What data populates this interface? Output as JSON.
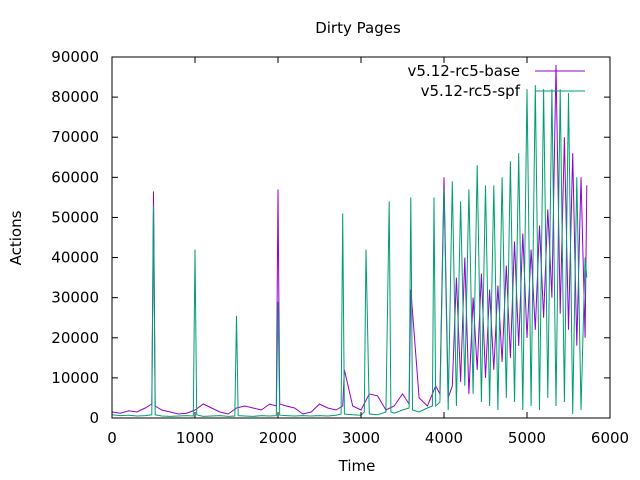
{
  "chart_data": {
    "type": "line",
    "title": "Dirty Pages",
    "xlabel": "Time",
    "ylabel": "Actions",
    "xlim": [
      0,
      6000
    ],
    "ylim": [
      0,
      90000
    ],
    "x_ticks": [
      "0",
      "1000",
      "2000",
      "3000",
      "4000",
      "5000",
      "6000"
    ],
    "y_ticks": [
      "0",
      "10000",
      "20000",
      "30000",
      "40000",
      "50000",
      "60000",
      "70000",
      "80000",
      "90000"
    ],
    "grid": false,
    "legend_position": "top-right",
    "series": [
      {
        "name": "v5.12-rc5-base",
        "color": "#9400d3",
        "x": [
          0,
          100,
          200,
          300,
          400,
          480,
          500,
          520,
          600,
          700,
          800,
          900,
          1000,
          1100,
          1200,
          1300,
          1400,
          1500,
          1600,
          1700,
          1800,
          1900,
          1980,
          2000,
          2020,
          2100,
          2200,
          2300,
          2400,
          2500,
          2600,
          2700,
          2780,
          2800,
          2900,
          3000,
          3100,
          3200,
          3300,
          3400,
          3500,
          3580,
          3600,
          3700,
          3800,
          3900,
          3950,
          4000,
          4050,
          4100,
          4150,
          4200,
          4250,
          4300,
          4350,
          4400,
          4450,
          4500,
          4550,
          4600,
          4650,
          4700,
          4750,
          4800,
          4850,
          4900,
          4950,
          5000,
          5050,
          5100,
          5150,
          5200,
          5250,
          5300,
          5350,
          5400,
          5450,
          5500,
          5550,
          5600,
          5650,
          5700,
          5720
        ],
        "y": [
          1500,
          1200,
          1800,
          1500,
          2500,
          3500,
          56500,
          3000,
          2000,
          1500,
          1000,
          1200,
          2000,
          3500,
          2500,
          1500,
          1000,
          2500,
          3000,
          2500,
          2000,
          3500,
          3000,
          57000,
          3500,
          3000,
          2500,
          1000,
          1500,
          3500,
          2500,
          2000,
          3000,
          12000,
          3000,
          2000,
          6000,
          5500,
          2000,
          3000,
          6000,
          3500,
          32000,
          5000,
          3000,
          8000,
          6000,
          60000,
          5000,
          8000,
          35000,
          9000,
          40000,
          6000,
          30000,
          12000,
          36000,
          10000,
          32000,
          12000,
          33000,
          14000,
          38000,
          15000,
          44000,
          18000,
          46000,
          20000,
          42000,
          22000,
          48000,
          25000,
          52000,
          30000,
          88000,
          26000,
          70000,
          22000,
          66000,
          18000,
          60000,
          20000,
          58000
        ]
      },
      {
        "name": "v5.12-rc5-spf",
        "color": "#009e73",
        "x": [
          0,
          100,
          200,
          300,
          400,
          480,
          500,
          520,
          600,
          700,
          800,
          900,
          980,
          1000,
          1020,
          1100,
          1200,
          1300,
          1400,
          1480,
          1500,
          1520,
          1600,
          1700,
          1800,
          1900,
          1980,
          2000,
          2020,
          2100,
          2200,
          2300,
          2400,
          2500,
          2600,
          2700,
          2760,
          2780,
          2800,
          2900,
          3000,
          3040,
          3060,
          3100,
          3200,
          3300,
          3340,
          3360,
          3400,
          3500,
          3580,
          3600,
          3620,
          3700,
          3800,
          3860,
          3880,
          3900,
          3950,
          4000,
          4050,
          4100,
          4150,
          4200,
          4250,
          4300,
          4350,
          4400,
          4450,
          4500,
          4550,
          4600,
          4650,
          4700,
          4750,
          4800,
          4850,
          4900,
          4950,
          5000,
          5050,
          5100,
          5150,
          5200,
          5250,
          5300,
          5350,
          5400,
          5450,
          5500,
          5550,
          5600,
          5650,
          5700,
          5720
        ],
        "y": [
          800,
          600,
          700,
          500,
          600,
          800,
          53000,
          800,
          500,
          400,
          500,
          600,
          500,
          42000,
          800,
          400,
          500,
          600,
          400,
          500,
          25500,
          600,
          500,
          400,
          600,
          500,
          600,
          29000,
          700,
          600,
          500,
          600,
          500,
          600,
          500,
          700,
          1000,
          51000,
          1000,
          800,
          700,
          1500,
          42000,
          1000,
          800,
          1500,
          54000,
          1500,
          1200,
          2000,
          2500,
          55000,
          2000,
          1500,
          2500,
          3000,
          55000,
          3000,
          4000,
          57000,
          2000,
          59000,
          3000,
          54000,
          8000,
          57000,
          6000,
          63000,
          4000,
          58000,
          3000,
          58000,
          2000,
          60000,
          5000,
          64000,
          4000,
          66000,
          2000,
          82000,
          3000,
          83000,
          2000,
          82000,
          5000,
          82000,
          3000,
          82000,
          4000,
          81000,
          1000,
          60000,
          2000,
          40000,
          35000
        ]
      }
    ]
  }
}
